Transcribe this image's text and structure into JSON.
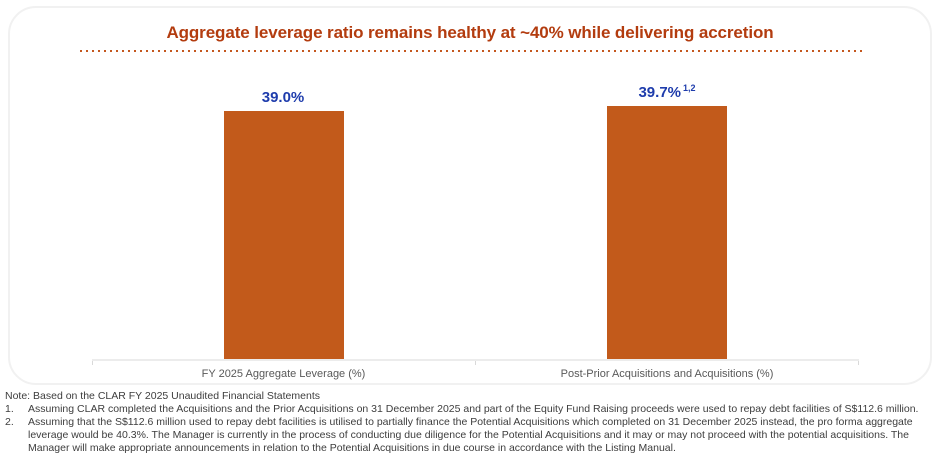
{
  "chart_data": {
    "type": "bar",
    "title": "Aggregate leverage ratio remains healthy at ~40% while delivering accretion",
    "categories": [
      "FY 2025 Aggregate Leverage (%)",
      "Post-Prior Acquisitions and Acquisitions (%)"
    ],
    "values": [
      39.0,
      39.7
    ],
    "value_labels": [
      "39.0%",
      "39.7%"
    ],
    "value_label_superscripts": [
      "",
      "1,2"
    ],
    "xlabel": "",
    "ylabel": "",
    "ylim": [
      0,
      42
    ],
    "grid": false,
    "legend": false,
    "bar_color": "#c25a1b",
    "value_label_color": "#1e3cac",
    "title_color": "#b33c0f"
  },
  "footnotes": {
    "intro": "Note: Based on the CLAR FY 2025 Unaudited Financial Statements",
    "items": [
      {
        "num": "1.",
        "text": "Assuming CLAR completed the Acquisitions and the Prior Acquisitions on 31 December 2025 and part of the Equity Fund Raising proceeds were used to repay debt facilities of S$112.6 million."
      },
      {
        "num": "2.",
        "text": "Assuming that the S$112.6 million used to repay debt facilities is utilised to partially finance the Potential Acquisitions which completed on 31 December 2025 instead, the pro forma aggregate leverage would be 40.3%. The Manager is currently in the process of conducting due diligence for the Potential Acquisitions and it may or may not proceed with the potential acquisitions. The Manager will make appropriate announcements in relation to the Potential Acquisitions in due course in accordance with the Listing Manual."
      }
    ]
  }
}
